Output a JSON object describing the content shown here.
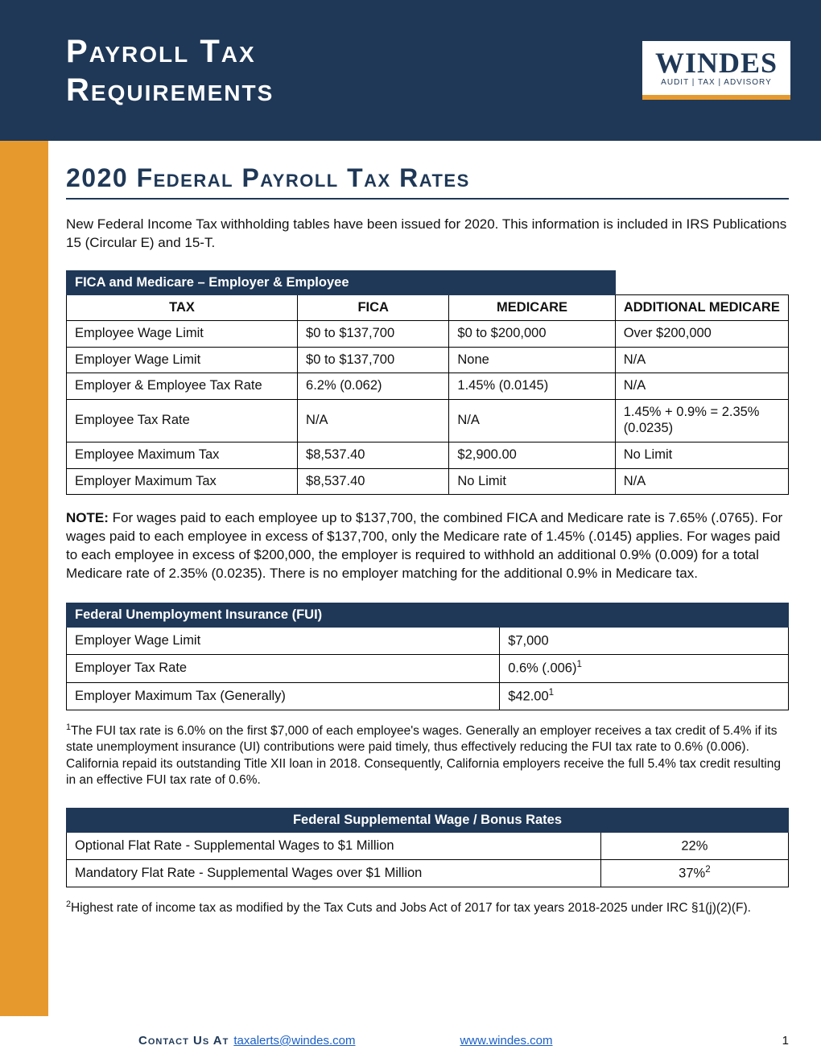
{
  "colors": {
    "header_bg": "#1f3857",
    "accent_orange": "#e69a2e",
    "text": "#111111",
    "link": "#1a5fc7",
    "page_bg": "#ffffff"
  },
  "header": {
    "title_line1": "Payroll Tax",
    "title_line2": "Requirements",
    "logo_main": "WINDES",
    "logo_sub": "AUDIT | TAX | ADVISORY"
  },
  "section_title": "2020 Federal Payroll Tax Rates",
  "intro": "New Federal Income Tax withholding tables have been issued for 2020. This information is included in IRS Publications 15 (Circular E) and 15-T.",
  "fica_table": {
    "header": "FICA and Medicare – Employer & Employee",
    "columns": [
      "TAX",
      "FICA",
      "MEDICARE",
      "ADDITIONAL MEDICARE"
    ],
    "rows": [
      [
        "Employee Wage Limit",
        "$0 to $137,700",
        "$0 to $200,000",
        "Over $200,000"
      ],
      [
        "Employer Wage Limit",
        "$0 to $137,700",
        "None",
        "N/A"
      ],
      [
        "Employer & Employee Tax Rate",
        "6.2% (0.062)",
        "1.45% (0.0145)",
        "N/A"
      ],
      [
        "Employee Tax Rate",
        "N/A",
        "N/A",
        "1.45% + 0.9% = 2.35% (0.0235)"
      ],
      [
        "Employee Maximum Tax",
        "$8,537.40",
        "$2,900.00",
        "No Limit"
      ],
      [
        "Employer Maximum Tax",
        "$8,537.40",
        "No Limit",
        "N/A"
      ]
    ]
  },
  "note_label": "NOTE:",
  "note_body": " For wages paid to each employee up to $137,700, the combined FICA and Medicare rate is 7.65% (.0765). For wages paid to each employee in excess of $137,700, only the Medicare rate of 1.45% (.0145) applies. For wages paid to each employee in excess of $200,000, the employer is required to withhold an additional 0.9% (0.009) for a total Medicare rate of 2.35% (0.0235). There is no employer matching for the additional 0.9% in Medicare tax.",
  "fui_table": {
    "header": "Federal Unemployment Insurance (FUI)",
    "rows": [
      {
        "label": "Employer Wage Limit",
        "value": "$7,000",
        "sup": ""
      },
      {
        "label": "Employer Tax Rate",
        "value": "0.6% (.006)",
        "sup": "1"
      },
      {
        "label": "Employer Maximum Tax (Generally)",
        "value": "$42.00",
        "sup": "1"
      }
    ]
  },
  "footnote1_sup": "1",
  "footnote1": "The FUI tax rate is 6.0% on the first $7,000 of each employee's wages. Generally an employer receives a tax credit of 5.4% if its state unemployment insurance (UI) contributions were paid timely, thus effectively reducing the FUI tax rate to 0.6% (0.006). California repaid its outstanding Title XII loan in 2018. Consequently, California employers receive the full 5.4% tax credit resulting in an effective FUI tax rate of 0.6%.",
  "sup_table": {
    "header": "Federal Supplemental Wage / Bonus Rates",
    "rows": [
      {
        "label": "Optional Flat Rate - Supplemental Wages to $1 Million",
        "value": "22%",
        "sup": ""
      },
      {
        "label": "Mandatory Flat Rate - Supplemental Wages over $1 Million",
        "value": "37%",
        "sup": "2"
      }
    ]
  },
  "footnote2_sup": "2",
  "footnote2": "Highest rate of income tax as modified by the Tax Cuts and Jobs Act of 2017 for tax years 2018-2025 under IRC §1(j)(2)(F).",
  "footer": {
    "contact_label": "Contact Us At",
    "email": "taxalerts@windes.com",
    "url": "www.windes.com",
    "page": "1"
  }
}
